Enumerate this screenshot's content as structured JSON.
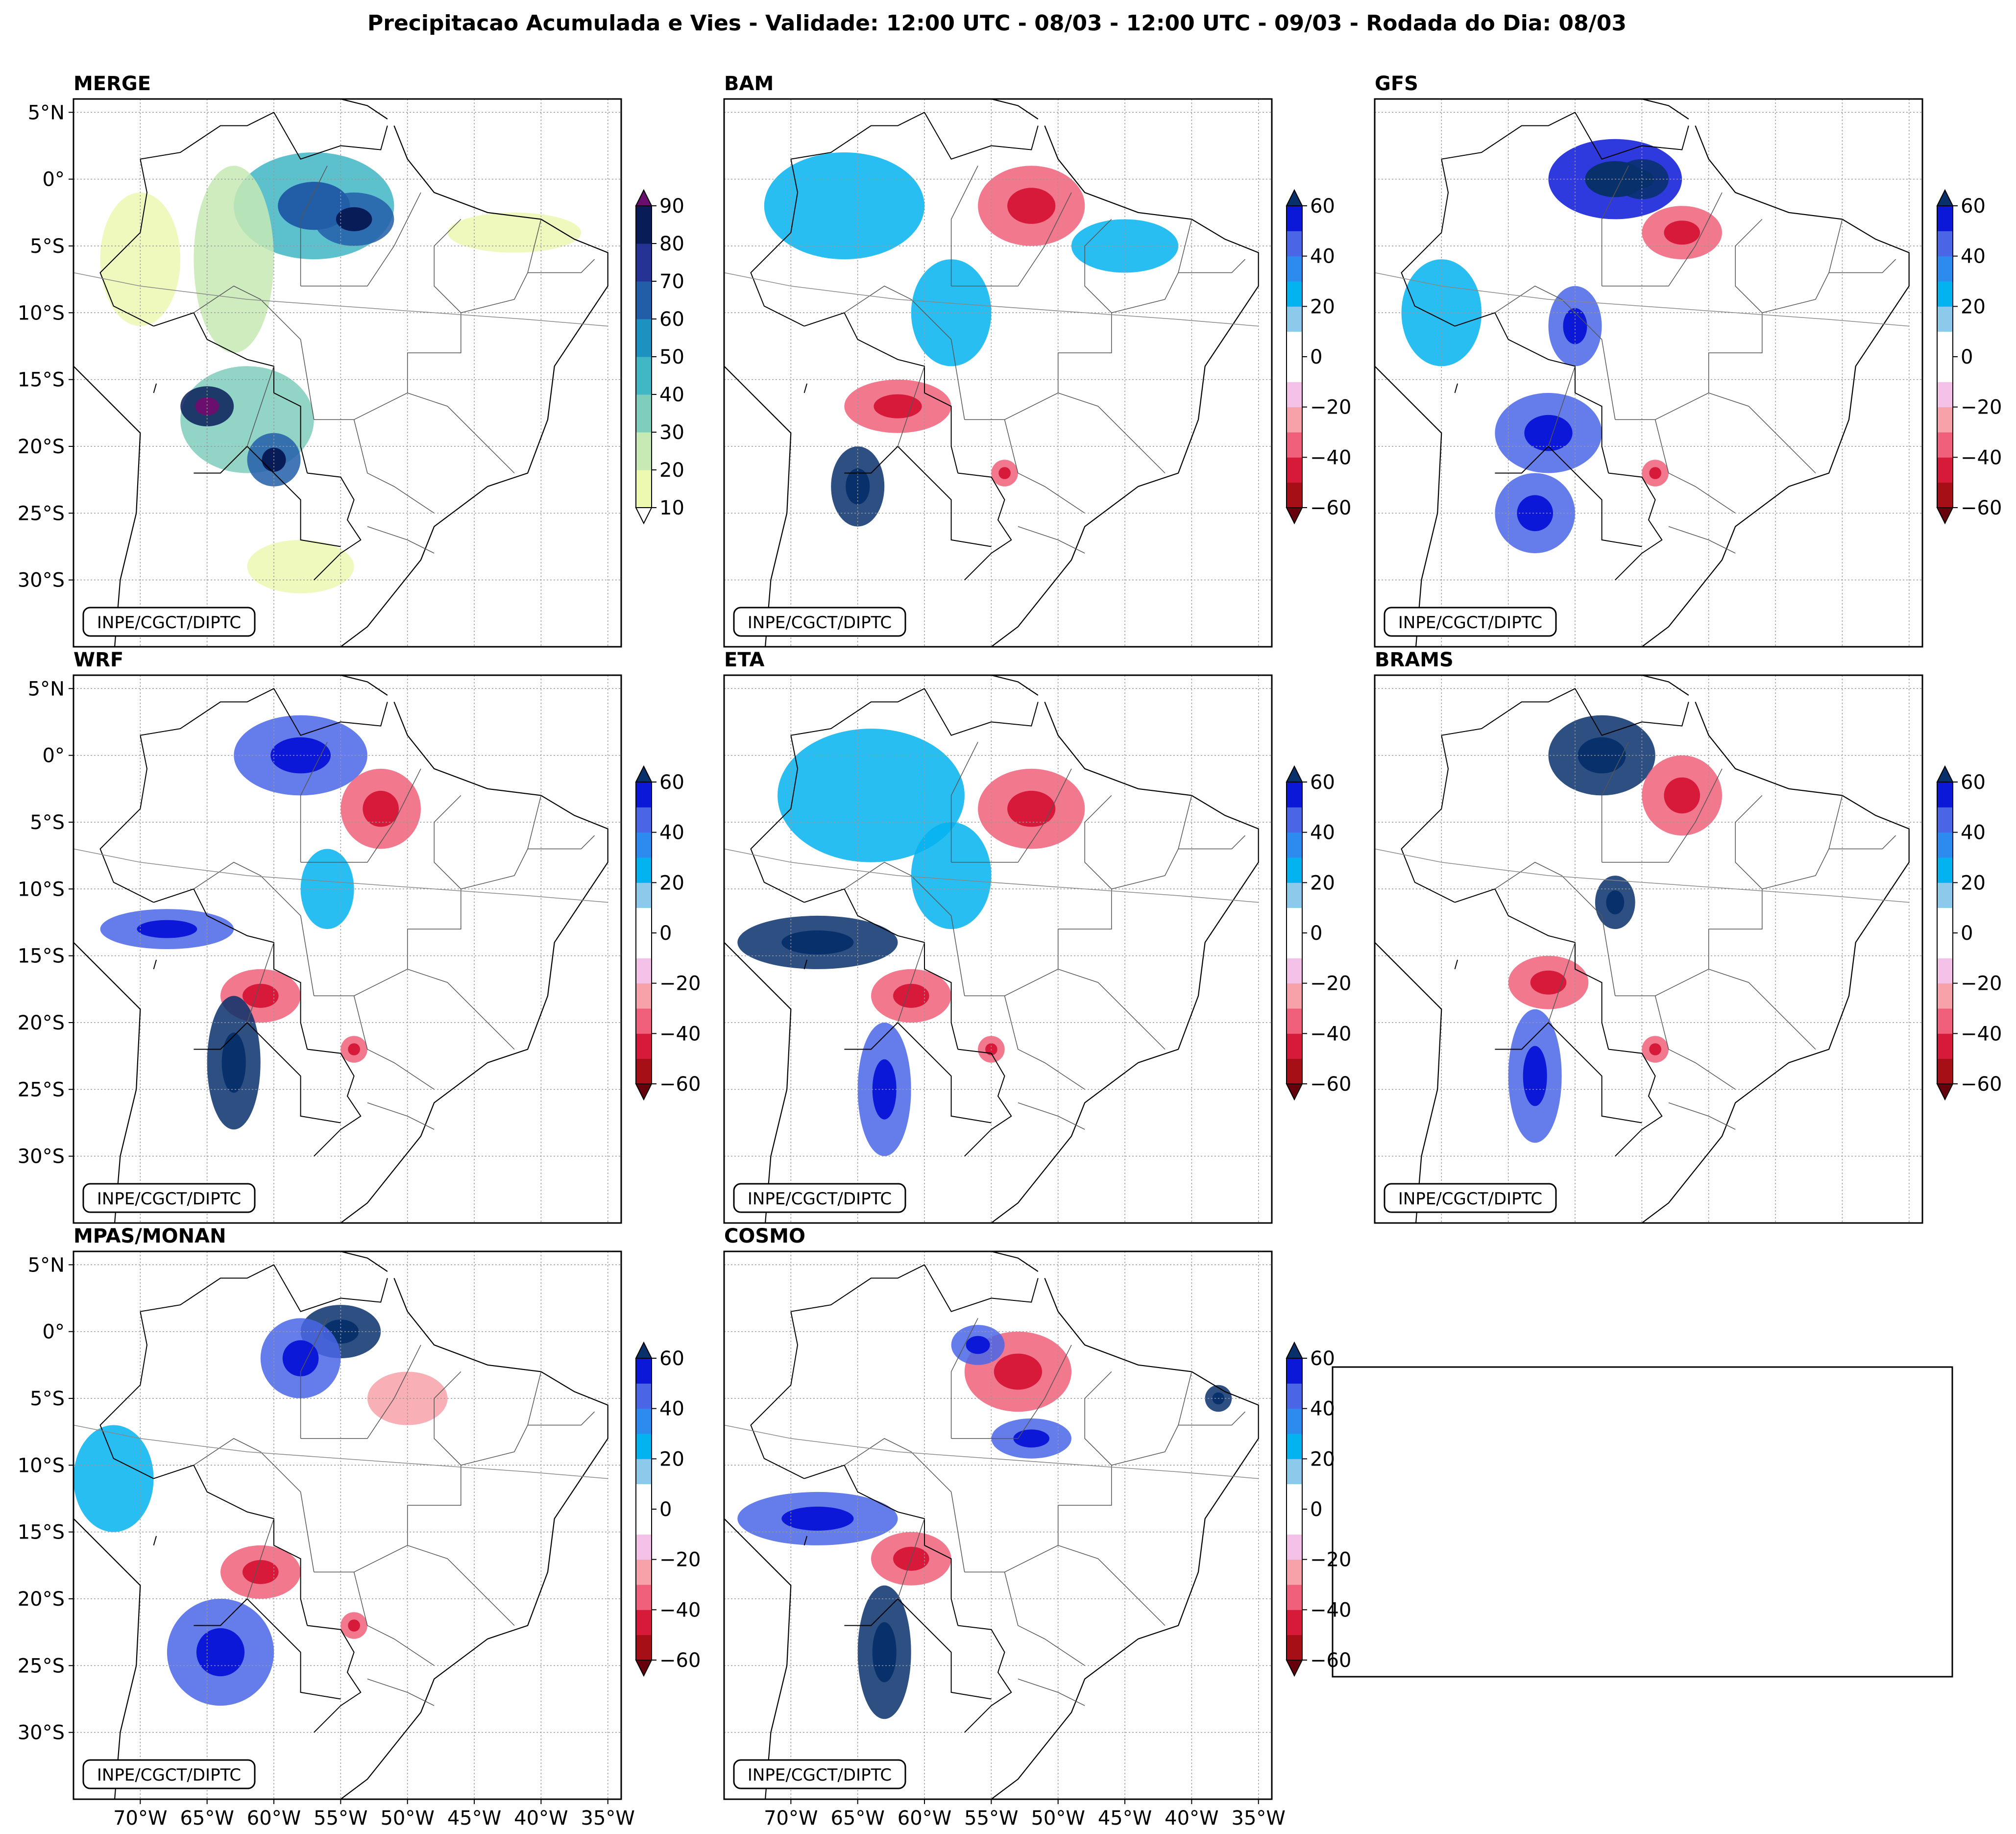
{
  "chart_data": {
    "type": "heatmap",
    "title": "Precipitacao Acumulada e Vies - Validade: 12:00 UTC - 08/03 - 12:00 UTC - 09/03 - Rodada do Dia: 08/03",
    "credit": "INPE/CGCT/DIPTC",
    "x_tick_labels": [
      "70°W",
      "65°W",
      "60°W",
      "55°W",
      "50°W",
      "45°W",
      "40°W",
      "35°W"
    ],
    "y_tick_labels": [
      "5°N",
      "0°",
      "5°S",
      "10°S",
      "15°S",
      "20°S",
      "25°S",
      "30°S"
    ],
    "x_ticks": [
      -70,
      -65,
      -60,
      -55,
      -50,
      -45,
      -40,
      -35
    ],
    "y_ticks": [
      5,
      0,
      -5,
      -10,
      -15,
      -20,
      -25,
      -30
    ],
    "xlim": [
      -75,
      -34
    ],
    "ylim": [
      -35,
      6
    ],
    "precip_colorbar": {
      "tick_labels": [
        "10",
        "20",
        "30",
        "40",
        "50",
        "60",
        "70",
        "80",
        "90"
      ],
      "levels": [
        10,
        20,
        30,
        40,
        50,
        60,
        70,
        80,
        90
      ],
      "colors": [
        "#edf8b1",
        "#c7e9b4",
        "#7fcdbb",
        "#41b6c4",
        "#1d91c0",
        "#225ea8",
        "#253494",
        "#081d58"
      ],
      "extend_high": "#6a0f6e",
      "extend_low": "#ffffff"
    },
    "bias_colorbar": {
      "tick_labels": [
        "60",
        "40",
        "20",
        "0",
        "−20",
        "−40",
        "−60"
      ],
      "levels": [
        -60,
        -50,
        -40,
        -30,
        -20,
        -10,
        0,
        10,
        20,
        30,
        40,
        50,
        60
      ],
      "colors": [
        "#a50f15",
        "#d7193a",
        "#f0607a",
        "#f7a1a8",
        "#f4c2e8",
        "#ffffff",
        "#ffffff",
        "#8cc9ea",
        "#03b3f0",
        "#2d8bf0",
        "#4a66e6",
        "#0b18d8"
      ],
      "extend_high": "#08306b",
      "extend_low": "#67000d"
    },
    "panels": [
      {
        "name": "MERGE",
        "kind": "precip",
        "regions": [
          {
            "lon": -57,
            "lat": -2,
            "rx": 6,
            "ry": 4,
            "level": 40
          },
          {
            "lon": -54,
            "lat": -3,
            "rx": 3,
            "ry": 2,
            "level": 60
          },
          {
            "lon": -62,
            "lat": -18,
            "rx": 5,
            "ry": 4,
            "level": 30
          },
          {
            "lon": -65,
            "lat": -17,
            "rx": 2,
            "ry": 1.5,
            "level": 80
          },
          {
            "lon": -60,
            "lat": -21,
            "rx": 2,
            "ry": 2,
            "level": 60
          },
          {
            "lon": -63,
            "lat": -6,
            "rx": 3,
            "ry": 7,
            "level": 20
          },
          {
            "lon": -70,
            "lat": -6,
            "rx": 3,
            "ry": 5,
            "level": 10
          },
          {
            "lon": -58,
            "lat": -29,
            "rx": 4,
            "ry": 2,
            "level": 10
          },
          {
            "lon": -42,
            "lat": -4,
            "rx": 5,
            "ry": 1.5,
            "level": 10
          }
        ]
      },
      {
        "name": "BAM",
        "kind": "bias",
        "regions": [
          {
            "lon": -52,
            "lat": -2,
            "rx": 4,
            "ry": 3,
            "level": -40
          },
          {
            "lon": -62,
            "lat": -17,
            "rx": 4,
            "ry": 2,
            "level": -40
          },
          {
            "lon": -65,
            "lat": -23,
            "rx": 2,
            "ry": 3,
            "level": 60
          },
          {
            "lon": -66,
            "lat": -2,
            "rx": 6,
            "ry": 4,
            "level": 20
          },
          {
            "lon": -58,
            "lat": -10,
            "rx": 3,
            "ry": 4,
            "level": 20
          },
          {
            "lon": -45,
            "lat": -5,
            "rx": 4,
            "ry": 2,
            "level": 20
          },
          {
            "lon": -54,
            "lat": -22,
            "rx": 1,
            "ry": 1,
            "level": -40
          }
        ]
      },
      {
        "name": "GFS",
        "kind": "bias",
        "regions": [
          {
            "lon": -57,
            "lat": 0,
            "rx": 5,
            "ry": 3,
            "level": 50
          },
          {
            "lon": -55,
            "lat": 0,
            "rx": 2,
            "ry": 1.5,
            "level": 60
          },
          {
            "lon": -52,
            "lat": -4,
            "rx": 3,
            "ry": 2,
            "level": -40
          },
          {
            "lon": -62,
            "lat": -19,
            "rx": 4,
            "ry": 3,
            "level": 40
          },
          {
            "lon": -60,
            "lat": -11,
            "rx": 2,
            "ry": 3,
            "level": 40
          },
          {
            "lon": -70,
            "lat": -10,
            "rx": 3,
            "ry": 4,
            "level": 20
          },
          {
            "lon": -63,
            "lat": -25,
            "rx": 3,
            "ry": 3,
            "level": 40
          },
          {
            "lon": -54,
            "lat": -22,
            "rx": 1,
            "ry": 1,
            "level": -40
          }
        ]
      },
      {
        "name": "WRF",
        "kind": "bias",
        "regions": [
          {
            "lon": -58,
            "lat": 0,
            "rx": 5,
            "ry": 3,
            "level": 40
          },
          {
            "lon": -52,
            "lat": -4,
            "rx": 3,
            "ry": 3,
            "level": -40
          },
          {
            "lon": -61,
            "lat": -18,
            "rx": 3,
            "ry": 2,
            "level": -40
          },
          {
            "lon": -68,
            "lat": -13,
            "rx": 5,
            "ry": 1.5,
            "level": 40
          },
          {
            "lon": -63,
            "lat": -23,
            "rx": 2,
            "ry": 5,
            "level": 60
          },
          {
            "lon": -56,
            "lat": -10,
            "rx": 2,
            "ry": 3,
            "level": 20
          },
          {
            "lon": -54,
            "lat": -22,
            "rx": 1,
            "ry": 1,
            "level": -40
          }
        ]
      },
      {
        "name": "ETA",
        "kind": "bias",
        "regions": [
          {
            "lon": -64,
            "lat": -3,
            "rx": 7,
            "ry": 5,
            "level": 20
          },
          {
            "lon": -52,
            "lat": -4,
            "rx": 4,
            "ry": 3,
            "level": -40
          },
          {
            "lon": -68,
            "lat": -14,
            "rx": 6,
            "ry": 2,
            "level": 60
          },
          {
            "lon": -61,
            "lat": -18,
            "rx": 3,
            "ry": 2,
            "level": -40
          },
          {
            "lon": -63,
            "lat": -25,
            "rx": 2,
            "ry": 5,
            "level": 40
          },
          {
            "lon": -58,
            "lat": -9,
            "rx": 3,
            "ry": 4,
            "level": 20
          },
          {
            "lon": -55,
            "lat": -22,
            "rx": 1,
            "ry": 1,
            "level": -40
          }
        ]
      },
      {
        "name": "BRAMS",
        "kind": "bias",
        "regions": [
          {
            "lon": -58,
            "lat": 0,
            "rx": 4,
            "ry": 3,
            "level": 60
          },
          {
            "lon": -52,
            "lat": -3,
            "rx": 3,
            "ry": 3,
            "level": -40
          },
          {
            "lon": -62,
            "lat": -17,
            "rx": 3,
            "ry": 2,
            "level": -40
          },
          {
            "lon": -63,
            "lat": -24,
            "rx": 2,
            "ry": 5,
            "level": 40
          },
          {
            "lon": -57,
            "lat": -11,
            "rx": 1.5,
            "ry": 2,
            "level": 60
          },
          {
            "lon": -54,
            "lat": -22,
            "rx": 1,
            "ry": 1,
            "level": -40
          }
        ]
      },
      {
        "name": "MPAS/MONAN",
        "kind": "bias",
        "regions": [
          {
            "lon": -55,
            "lat": 0,
            "rx": 3,
            "ry": 2,
            "level": 60
          },
          {
            "lon": -58,
            "lat": -2,
            "rx": 3,
            "ry": 3,
            "level": 40
          },
          {
            "lon": -61,
            "lat": -18,
            "rx": 3,
            "ry": 2,
            "level": -40
          },
          {
            "lon": -64,
            "lat": -24,
            "rx": 4,
            "ry": 4,
            "level": 40
          },
          {
            "lon": -72,
            "lat": -11,
            "rx": 3,
            "ry": 4,
            "level": 20
          },
          {
            "lon": -50,
            "lat": -5,
            "rx": 3,
            "ry": 2,
            "level": -30
          },
          {
            "lon": -54,
            "lat": -22,
            "rx": 1,
            "ry": 1,
            "level": -40
          }
        ]
      },
      {
        "name": "COSMO",
        "kind": "bias",
        "regions": [
          {
            "lon": -53,
            "lat": -3,
            "rx": 4,
            "ry": 3,
            "level": -40
          },
          {
            "lon": -56,
            "lat": -1,
            "rx": 2,
            "ry": 1.5,
            "level": 40
          },
          {
            "lon": -61,
            "lat": -17,
            "rx": 3,
            "ry": 2,
            "level": -40
          },
          {
            "lon": -68,
            "lat": -14,
            "rx": 6,
            "ry": 2,
            "level": 40
          },
          {
            "lon": -63,
            "lat": -24,
            "rx": 2,
            "ry": 5,
            "level": 60
          },
          {
            "lon": -52,
            "lat": -8,
            "rx": 3,
            "ry": 1.5,
            "level": 40
          },
          {
            "lon": -38,
            "lat": -5,
            "rx": 1,
            "ry": 1,
            "level": 60
          }
        ]
      }
    ]
  }
}
